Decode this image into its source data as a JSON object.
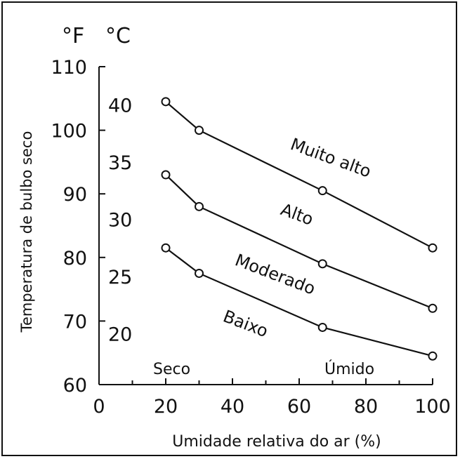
{
  "chart_data": {
    "type": "line",
    "ylabel": "Temperatura de bulbo seco",
    "xlabel": "Umidade relativa do ar (%)",
    "unit_f": "°F",
    "unit_c": "°C",
    "xlim": [
      0,
      100
    ],
    "ylim": [
      60,
      110
    ],
    "x_ticks": [
      "0",
      "20",
      "40",
      "60",
      "80",
      "100"
    ],
    "yf_ticks": [
      "60",
      "70",
      "80",
      "90",
      "100",
      "110"
    ],
    "yc_ticks": [
      "20",
      "25",
      "30",
      "35",
      "40"
    ],
    "annotations": {
      "dry": "Seco",
      "humid": "Úmido"
    },
    "series": [
      {
        "name": "Muito alto",
        "x": [
          20,
          30,
          67,
          100
        ],
        "y": [
          104.5,
          100,
          90.5,
          81.5
        ]
      },
      {
        "name": "Alto",
        "x": [
          20,
          30,
          67,
          100
        ],
        "y": [
          93,
          88,
          79,
          72
        ]
      },
      {
        "name": "Moderado",
        "x": [],
        "y": []
      },
      {
        "name": "Baixo",
        "x": [
          20,
          30,
          67,
          100
        ],
        "y": [
          81.5,
          77.5,
          69,
          64.5
        ]
      }
    ]
  }
}
